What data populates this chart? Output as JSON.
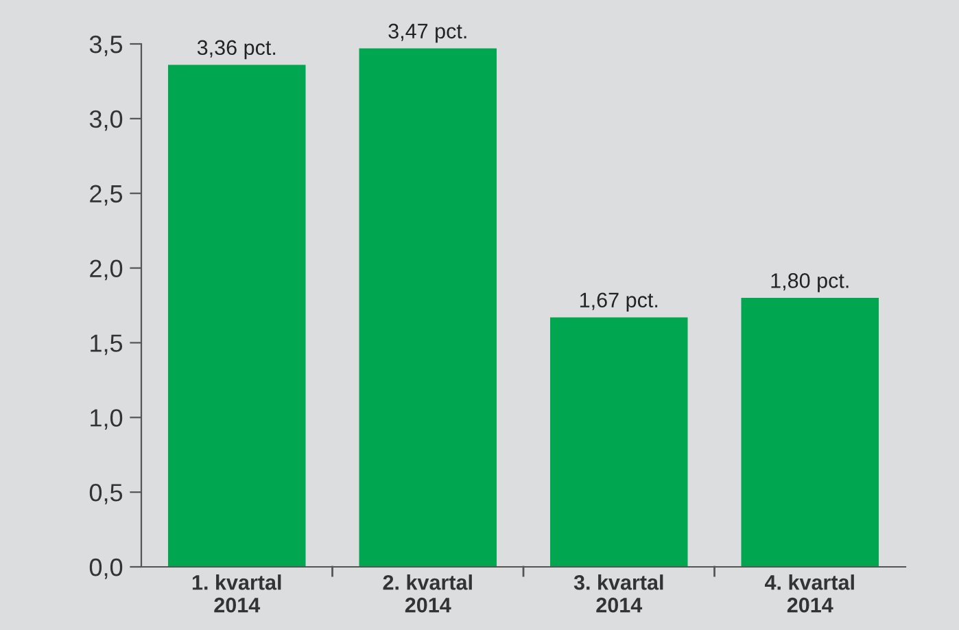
{
  "chart_data": {
    "type": "bar",
    "categories": [
      "1. kvartal\n2014",
      "2. kvartal\n2014",
      "3. kvartal\n2014",
      "4. kvartal\n2014"
    ],
    "values": [
      3.36,
      3.47,
      1.67,
      1.8
    ],
    "value_labels": [
      "3,36 pct.",
      "3,47 pct.",
      "1,67 pct.",
      "1,80 pct."
    ],
    "color": "#00a650",
    "ylim": [
      0,
      3.5
    ],
    "yticks": [
      {
        "value": 0,
        "label": "0,0"
      },
      {
        "value": 0.5,
        "label": "0,5"
      },
      {
        "value": 1,
        "label": "1,0"
      },
      {
        "value": 1.5,
        "label": "1,5"
      },
      {
        "value": 2,
        "label": "2,0"
      },
      {
        "value": 2.5,
        "label": "2,5"
      },
      {
        "value": 3,
        "label": "3,0"
      },
      {
        "value": 3.5,
        "label": "3,5"
      }
    ],
    "grid": false,
    "legend": false
  }
}
